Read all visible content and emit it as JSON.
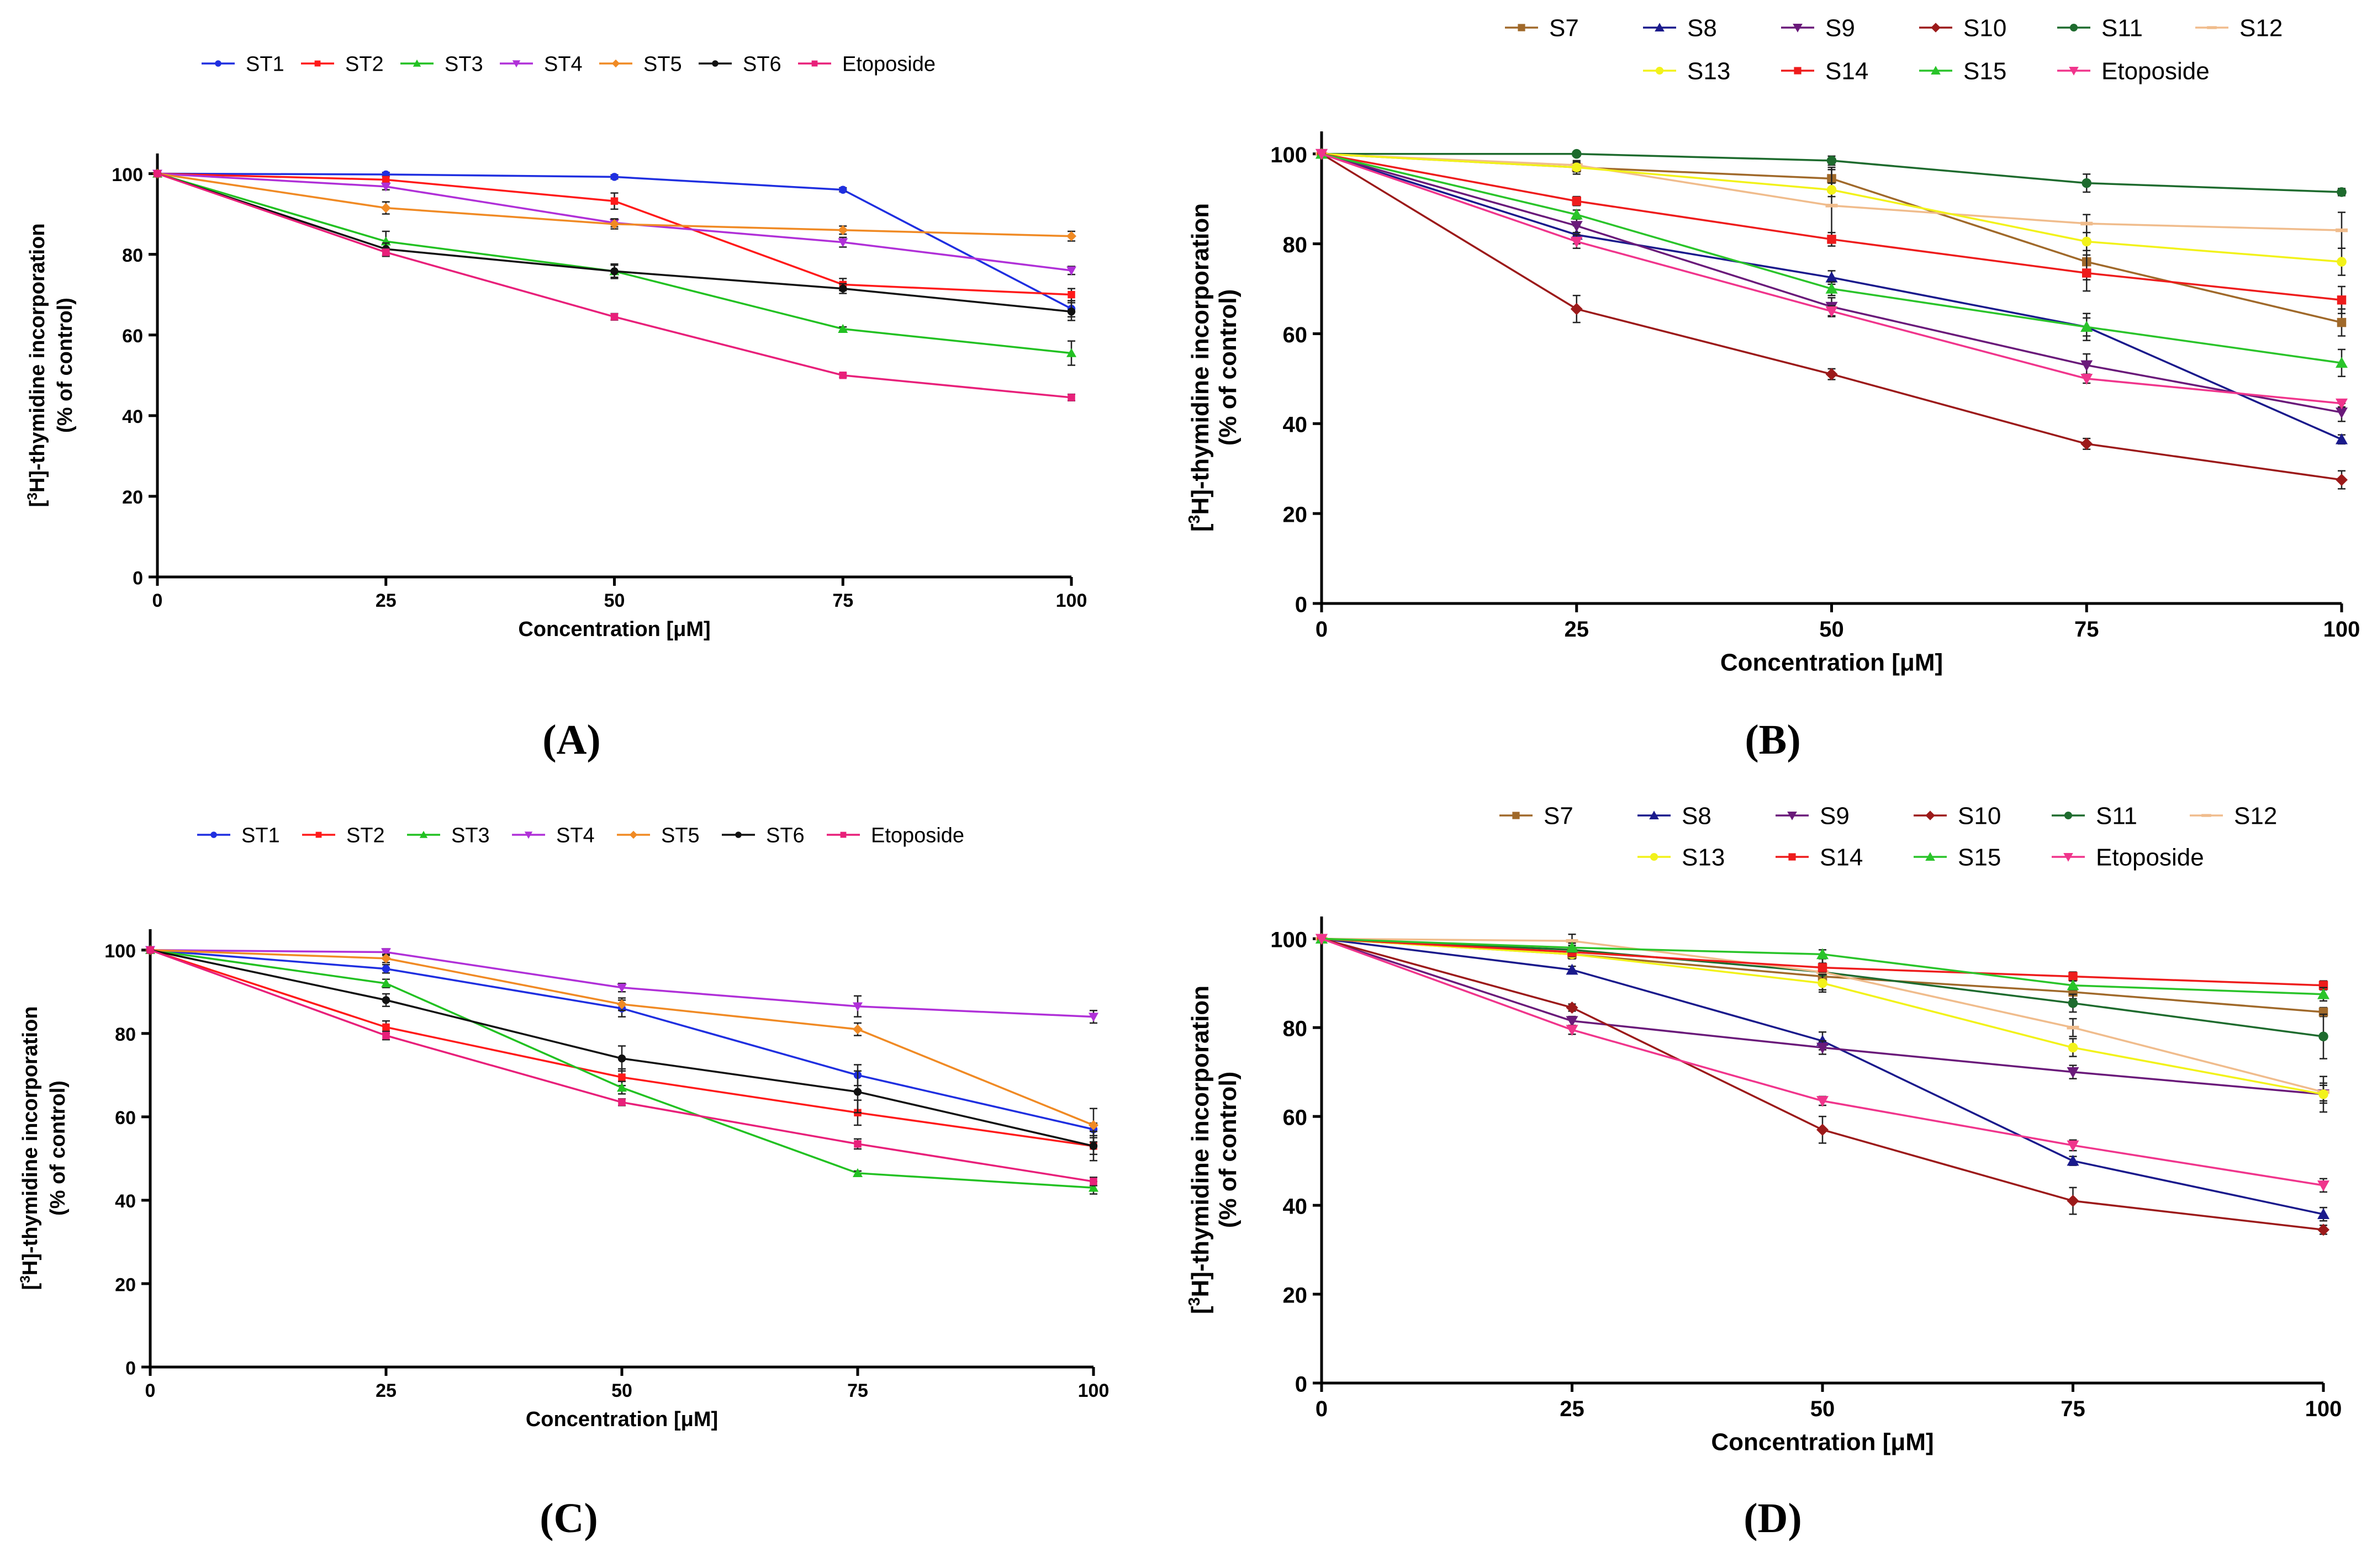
{
  "figure": {
    "panel_letters": [
      "(A)",
      "(B)",
      "(C)",
      "(D)"
    ]
  },
  "chart_data": [
    {
      "panel": "(A)",
      "type": "line",
      "xlabel": "Concentration [μM]",
      "ylabel_line1": "[3H]-thymidine incorporation",
      "ylabel_line2": "(% of control)",
      "x": [
        0,
        25,
        50,
        75,
        100
      ],
      "x_ticks": [
        "0",
        "25",
        "50",
        "75",
        "100"
      ],
      "y_ticks": [
        "0",
        "20",
        "40",
        "60",
        "80",
        "100"
      ],
      "xlim": [
        0,
        100
      ],
      "ylim": [
        0,
        105
      ],
      "legend_rows": 1,
      "series": [
        {
          "name": "ST1",
          "color": "#1f2fe0",
          "marker": "circle",
          "values": [
            100,
            99.8,
            99.2,
            96,
            66.5
          ],
          "errors": [
            0,
            0.5,
            0.5,
            0.5,
            2
          ]
        },
        {
          "name": "ST2",
          "color": "#ff1a1a",
          "marker": "square",
          "values": [
            100,
            98.5,
            93.2,
            72.5,
            70
          ],
          "errors": [
            0,
            0.8,
            2,
            1.5,
            1.5
          ]
        },
        {
          "name": "ST3",
          "color": "#22c122",
          "marker": "triangle",
          "values": [
            100,
            83.2,
            75.8,
            61.5,
            55.5
          ],
          "errors": [
            0,
            2.5,
            1.5,
            0.5,
            3
          ]
        },
        {
          "name": "ST4",
          "color": "#b030d8",
          "marker": "triangle-down",
          "values": [
            100,
            96.8,
            87.8,
            83,
            76
          ],
          "errors": [
            0,
            0.8,
            1,
            1.2,
            1
          ]
        },
        {
          "name": "ST5",
          "color": "#f08a24",
          "marker": "diamond",
          "values": [
            100,
            91.5,
            87.5,
            86,
            84.5
          ],
          "errors": [
            0,
            1.5,
            1.2,
            1,
            1.2
          ]
        },
        {
          "name": "ST6",
          "color": "#111111",
          "marker": "circle",
          "values": [
            100,
            81.3,
            75.8,
            71.5,
            65.8
          ],
          "errors": [
            0,
            1.5,
            1.8,
            1.2,
            2.2
          ]
        },
        {
          "name": "Etoposide",
          "color": "#e8207a",
          "marker": "square",
          "values": [
            100,
            80.5,
            64.5,
            50,
            44.5
          ],
          "errors": [
            0,
            1,
            0.8,
            0.5,
            0.8
          ]
        }
      ]
    },
    {
      "panel": "(B)",
      "type": "line",
      "xlabel": "Concentration [μM]",
      "ylabel_line1": "[3H]-thymidine incorporation",
      "ylabel_line2": "(% of control)",
      "x": [
        0,
        25,
        50,
        75,
        100
      ],
      "x_ticks": [
        "0",
        "25",
        "50",
        "75",
        "100"
      ],
      "y_ticks": [
        "0",
        "20",
        "40",
        "60",
        "80",
        "100"
      ],
      "xlim": [
        0,
        100
      ],
      "ylim": [
        0,
        105
      ],
      "legend_rows": 2,
      "series": [
        {
          "name": "S7",
          "color": "#a0692a",
          "marker": "square",
          "values": [
            100,
            97,
            94.5,
            76,
            62.5
          ],
          "errors": [
            0,
            1.5,
            2.5,
            4,
            3
          ]
        },
        {
          "name": "S8",
          "color": "#1a1a8c",
          "marker": "triangle",
          "values": [
            100,
            82,
            72.5,
            61.5,
            36.5
          ],
          "errors": [
            0,
            2,
            1.5,
            3,
            1
          ]
        },
        {
          "name": "S9",
          "color": "#6a1a7a",
          "marker": "triangle-down",
          "values": [
            100,
            84,
            66,
            53,
            42.5
          ],
          "errors": [
            0,
            1.5,
            2,
            2.5,
            2
          ]
        },
        {
          "name": "S10",
          "color": "#9c1a1a",
          "marker": "diamond",
          "values": [
            100,
            65.5,
            51,
            35.5,
            27.5
          ],
          "errors": [
            0,
            3,
            1.2,
            1.2,
            2
          ]
        },
        {
          "name": "S11",
          "color": "#1e6b2e",
          "marker": "circle",
          "values": [
            100,
            100,
            98.5,
            93.5,
            91.5
          ],
          "errors": [
            0,
            0.5,
            1,
            2,
            0.8
          ]
        },
        {
          "name": "S12",
          "color": "#f0bc8c",
          "marker": "dash",
          "values": [
            100,
            97.5,
            88.5,
            84.5,
            83
          ],
          "errors": [
            0,
            0.8,
            8,
            2,
            4
          ]
        },
        {
          "name": "S13",
          "color": "#f2f21a",
          "marker": "circle",
          "values": [
            100,
            97,
            92,
            80.5,
            76
          ],
          "errors": [
            0,
            1,
            1.5,
            2,
            3
          ]
        },
        {
          "name": "S14",
          "color": "#ee1c1c",
          "marker": "square",
          "values": [
            100,
            89.5,
            81,
            73.5,
            67.5
          ],
          "errors": [
            0,
            1,
            1.5,
            4,
            3
          ]
        },
        {
          "name": "S15",
          "color": "#2ac42a",
          "marker": "triangle",
          "values": [
            100,
            86.5,
            70,
            61.5,
            53.5
          ],
          "errors": [
            0,
            1,
            1.5,
            2,
            3
          ]
        },
        {
          "name": "Etoposide",
          "color": "#f0358c",
          "marker": "triangle-down",
          "values": [
            100,
            80.5,
            65,
            50,
            44.5
          ],
          "errors": [
            0,
            1.5,
            1.2,
            1,
            0.8
          ]
        }
      ]
    },
    {
      "panel": "(C)",
      "type": "line",
      "xlabel": "Concentration [μM]",
      "ylabel_line1": "[3H]-thymidine incorporation",
      "ylabel_line2": "(% of control)",
      "x": [
        0,
        25,
        50,
        75,
        100
      ],
      "x_ticks": [
        "0",
        "25",
        "50",
        "75",
        "100"
      ],
      "y_ticks": [
        "0",
        "20",
        "40",
        "60",
        "80",
        "100"
      ],
      "xlim": [
        0,
        100
      ],
      "ylim": [
        0,
        105
      ],
      "legend_rows": 1,
      "series": [
        {
          "name": "ST1",
          "color": "#1f2fe0",
          "marker": "circle",
          "values": [
            100,
            95.5,
            86,
            70,
            57
          ],
          "errors": [
            0,
            1,
            2,
            2.5,
            1.5
          ]
        },
        {
          "name": "ST2",
          "color": "#ff1a1a",
          "marker": "square",
          "values": [
            100,
            81.5,
            69.5,
            61,
            53
          ],
          "errors": [
            0,
            1.5,
            2,
            3,
            2
          ]
        },
        {
          "name": "ST3",
          "color": "#22c122",
          "marker": "triangle",
          "values": [
            100,
            92,
            67,
            46.5,
            43
          ],
          "errors": [
            0,
            1,
            1.5,
            0.5,
            1.5
          ]
        },
        {
          "name": "ST4",
          "color": "#b030d8",
          "marker": "triangle-down",
          "values": [
            100,
            99.5,
            91,
            86.5,
            84
          ],
          "errors": [
            0,
            0.8,
            1,
            2.5,
            1.5
          ]
        },
        {
          "name": "ST5",
          "color": "#f08a24",
          "marker": "diamond",
          "values": [
            100,
            98,
            87,
            81,
            58
          ],
          "errors": [
            0,
            1,
            1.5,
            1.5,
            4
          ]
        },
        {
          "name": "ST6",
          "color": "#111111",
          "marker": "circle",
          "values": [
            100,
            88,
            74,
            66,
            53
          ],
          "errors": [
            0,
            1.5,
            3,
            5,
            3.5
          ]
        },
        {
          "name": "Etoposide",
          "color": "#e8207a",
          "marker": "square",
          "values": [
            100,
            79.5,
            63.5,
            53.5,
            44.5
          ],
          "errors": [
            0,
            1,
            0.8,
            1.2,
            1
          ]
        }
      ]
    },
    {
      "panel": "(D)",
      "type": "line",
      "xlabel": "Concentration [μM]",
      "ylabel_line1": "[3H]-thymidine incorporation",
      "ylabel_line2": "(% of control)",
      "x": [
        0,
        25,
        50,
        75,
        100
      ],
      "x_ticks": [
        "0",
        "25",
        "50",
        "75",
        "100"
      ],
      "y_ticks": [
        "0",
        "20",
        "40",
        "60",
        "80",
        "100"
      ],
      "xlim": [
        0,
        100
      ],
      "ylim": [
        0,
        105
      ],
      "legend_rows": 2,
      "series": [
        {
          "name": "S7",
          "color": "#a0692a",
          "marker": "square",
          "values": [
            100,
            96.5,
            91.5,
            88,
            83.5
          ],
          "errors": [
            0,
            1,
            1.5,
            1.5,
            1
          ]
        },
        {
          "name": "S8",
          "color": "#1a1a8c",
          "marker": "triangle",
          "values": [
            100,
            93,
            77,
            50,
            38
          ],
          "errors": [
            0,
            0.8,
            2,
            1,
            1.5
          ]
        },
        {
          "name": "S9",
          "color": "#6a1a7a",
          "marker": "triangle-down",
          "values": [
            100,
            81.5,
            75.5,
            70,
            65
          ],
          "errors": [
            0,
            1,
            1.5,
            1.5,
            4
          ]
        },
        {
          "name": "S10",
          "color": "#9c1a1a",
          "marker": "diamond",
          "values": [
            100,
            84.5,
            57,
            41,
            34.5
          ],
          "errors": [
            0,
            0.8,
            3,
            3,
            1
          ]
        },
        {
          "name": "S11",
          "color": "#1e6b2e",
          "marker": "circle",
          "values": [
            100,
            97.5,
            92.5,
            85.5,
            78
          ],
          "errors": [
            0,
            1,
            4,
            2,
            5
          ]
        },
        {
          "name": "S12",
          "color": "#f0bc8c",
          "marker": "dash",
          "values": [
            100,
            99.5,
            92.5,
            80,
            65.5
          ],
          "errors": [
            0,
            1.5,
            3,
            2,
            2
          ]
        },
        {
          "name": "S13",
          "color": "#f2f21a",
          "marker": "circle",
          "values": [
            100,
            96.5,
            90,
            75.5,
            65
          ],
          "errors": [
            0,
            1,
            2,
            2,
            2
          ]
        },
        {
          "name": "S14",
          "color": "#ee1c1c",
          "marker": "square",
          "values": [
            100,
            97,
            93.5,
            91.5,
            89.5
          ],
          "errors": [
            0,
            1,
            1,
            1,
            1
          ]
        },
        {
          "name": "S15",
          "color": "#2ac42a",
          "marker": "triangle",
          "values": [
            100,
            98,
            96.5,
            89.5,
            87.5
          ],
          "errors": [
            0,
            1,
            1,
            1,
            1.5
          ]
        },
        {
          "name": "Etoposide",
          "color": "#f0358c",
          "marker": "triangle-down",
          "values": [
            100,
            79.5,
            63.5,
            53.5,
            44.5
          ],
          "errors": [
            0,
            1,
            1,
            1.2,
            1.5
          ]
        }
      ]
    }
  ]
}
